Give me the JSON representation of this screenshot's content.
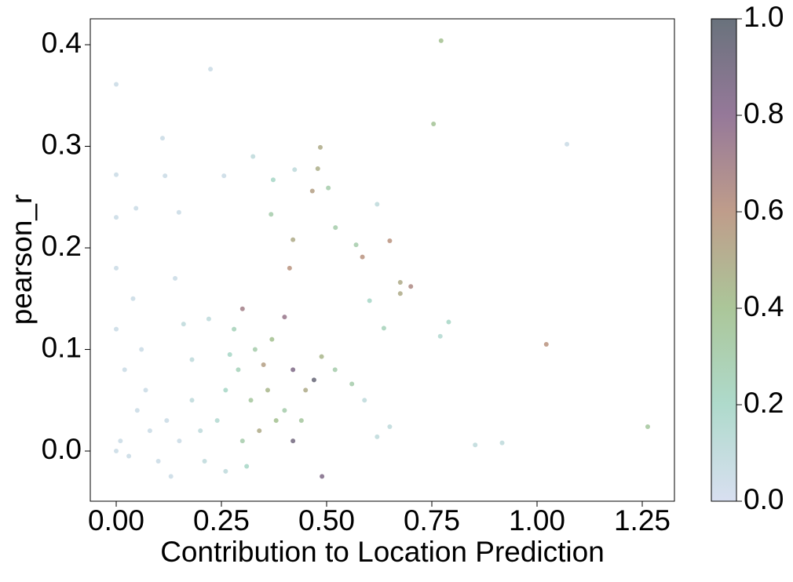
{
  "chart_data": {
    "type": "scatter",
    "x_label": "Contribution to Location Prediction",
    "y_label": "pearson_r",
    "x": [
      0.772,
      0.224,
      0.0,
      0.754,
      1.071,
      0.11,
      0.485,
      0.325,
      0.479,
      0.0,
      0.116,
      0.256,
      0.424,
      0.373,
      0.466,
      0.504,
      0.0,
      0.62,
      0.047,
      0.149,
      0.368,
      0.521,
      0.65,
      0.585,
      0.57,
      0.675,
      0.7,
      0.675,
      0.79,
      0.77,
      1.022,
      1.263,
      0.489,
      0.853,
      0.917,
      0.62,
      0.65,
      0.59,
      0.56,
      0.602,
      0.636,
      0.488,
      0.52,
      0.47,
      0.42,
      0.412,
      0.4,
      0.42,
      0.42,
      0.45,
      0.37,
      0.35,
      0.3,
      0.33,
      0.29,
      0.26,
      0.32,
      0.38,
      0.34,
      0.3,
      0.24,
      0.2,
      0.18,
      0.15,
      0.12,
      0.1,
      0.08,
      0.05,
      0.03,
      0.01,
      0.0,
      0.0,
      0.02,
      0.06,
      0.14,
      0.22,
      0.18,
      0.26,
      0.28,
      0.36,
      0.4,
      0.44,
      0.31,
      0.21,
      0.13,
      0.07,
      0.04,
      0.0,
      0.16,
      0.27
    ],
    "values": [
      0.404,
      0.376,
      0.361,
      0.322,
      0.302,
      0.308,
      0.299,
      0.29,
      0.278,
      0.272,
      0.271,
      0.271,
      0.277,
      0.267,
      0.256,
      0.259,
      0.23,
      0.243,
      0.239,
      0.235,
      0.233,
      0.22,
      0.207,
      0.191,
      0.203,
      0.166,
      0.162,
      0.155,
      0.127,
      0.113,
      0.105,
      0.024,
      -0.025,
      0.006,
      0.008,
      0.014,
      0.024,
      0.05,
      0.066,
      0.148,
      0.121,
      0.093,
      0.08,
      0.07,
      0.208,
      0.18,
      0.132,
      0.08,
      0.01,
      0.06,
      0.11,
      0.085,
      0.14,
      0.1,
      0.08,
      0.06,
      0.05,
      0.03,
      0.02,
      0.01,
      0.03,
      0.02,
      0.05,
      0.01,
      0.03,
      -0.01,
      0.02,
      0.04,
      -0.005,
      0.01,
      0.12,
      0.18,
      0.08,
      0.1,
      0.17,
      0.13,
      0.09,
      -0.02,
      0.12,
      0.06,
      0.04,
      0.03,
      -0.015,
      -0.01,
      -0.025,
      0.06,
      0.15,
      0.0,
      0.125,
      0.095
    ],
    "c": [
      0.4,
      0.05,
      0.05,
      0.38,
      0.05,
      0.05,
      0.5,
      0.1,
      0.48,
      0.05,
      0.05,
      0.05,
      0.1,
      0.2,
      0.55,
      0.3,
      0.05,
      0.1,
      0.05,
      0.05,
      0.3,
      0.3,
      0.6,
      0.6,
      0.3,
      0.5,
      0.65,
      0.5,
      0.2,
      0.15,
      0.6,
      0.35,
      0.85,
      0.1,
      0.1,
      0.1,
      0.1,
      0.1,
      0.3,
      0.2,
      0.25,
      0.45,
      0.3,
      0.95,
      0.5,
      0.6,
      0.75,
      0.85,
      0.9,
      0.5,
      0.4,
      0.55,
      0.7,
      0.3,
      0.25,
      0.2,
      0.35,
      0.4,
      0.5,
      0.3,
      0.15,
      0.1,
      0.1,
      0.05,
      0.05,
      0.05,
      0.05,
      0.05,
      0.05,
      0.05,
      0.05,
      0.05,
      0.05,
      0.05,
      0.05,
      0.1,
      0.1,
      0.1,
      0.25,
      0.45,
      0.3,
      0.35,
      0.2,
      0.1,
      0.05,
      0.05,
      0.05,
      0.05,
      0.1,
      0.2
    ],
    "colormap": [
      "#d4dcef",
      "#a6d6c6",
      "#a2c08e",
      "#b8927e",
      "#8a6a8e",
      "#59636e"
    ],
    "xlim": [
      -0.0616,
      1.3265
    ],
    "ylim": [
      -0.0494,
      0.4255
    ],
    "clim": [
      0,
      1
    ],
    "xticks": [
      {
        "value": 0,
        "label": "0.00"
      },
      {
        "value": 0.25,
        "label": "0.25"
      },
      {
        "value": 0.5,
        "label": "0.50"
      },
      {
        "value": 0.75,
        "label": "0.75"
      },
      {
        "value": 1,
        "label": "1.00"
      },
      {
        "value": 1.25,
        "label": "1.25"
      }
    ],
    "yticks": [
      {
        "value": 0,
        "label": "0.0"
      },
      0.1,
      0.2,
      0.3,
      0.4
    ],
    "cticks": [
      {
        "value": 0,
        "label": "0.0"
      },
      0.2,
      0.4,
      0.6,
      0.8,
      {
        "value": 1,
        "label": "1.0"
      }
    ]
  }
}
